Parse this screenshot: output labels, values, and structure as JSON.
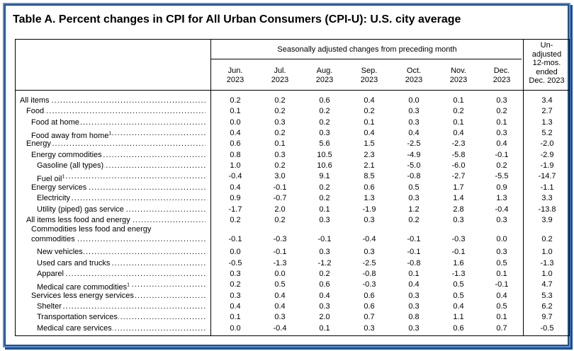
{
  "title": "Table A. Percent changes in CPI for All Urban Consumers (CPI-U): U.S. city average",
  "header": {
    "span_label": "Seasonally adjusted changes from preceding month",
    "months": [
      {
        "m": "Jun.",
        "y": "2023"
      },
      {
        "m": "Jul.",
        "y": "2023"
      },
      {
        "m": "Aug.",
        "y": "2023"
      },
      {
        "m": "Sep.",
        "y": "2023"
      },
      {
        "m": "Oct.",
        "y": "2023"
      },
      {
        "m": "Nov.",
        "y": "2023"
      },
      {
        "m": "Dec.",
        "y": "2023"
      }
    ],
    "unadjusted_lines": [
      "Un-",
      "adjusted",
      "12-mos.",
      "ended",
      "Dec. 2023"
    ]
  },
  "rows": [
    {
      "label": "All items",
      "sup": "",
      "indent": 0,
      "values": [
        "0.2",
        "0.2",
        "0.6",
        "0.4",
        "0.0",
        "0.1",
        "0.3",
        "3.4"
      ]
    },
    {
      "label": "Food",
      "sup": "",
      "indent": 1,
      "values": [
        "0.1",
        "0.2",
        "0.2",
        "0.2",
        "0.3",
        "0.2",
        "0.2",
        "2.7"
      ]
    },
    {
      "label": "Food at home",
      "sup": "",
      "indent": 2,
      "values": [
        "0.0",
        "0.3",
        "0.2",
        "0.1",
        "0.3",
        "0.1",
        "0.1",
        "1.3"
      ]
    },
    {
      "label": "Food away from home",
      "sup": "1",
      "indent": 2,
      "values": [
        "0.4",
        "0.2",
        "0.3",
        "0.4",
        "0.4",
        "0.4",
        "0.3",
        "5.2"
      ]
    },
    {
      "label": "Energy",
      "sup": "",
      "indent": 1,
      "values": [
        "0.6",
        "0.1",
        "5.6",
        "1.5",
        "-2.5",
        "-2.3",
        "0.4",
        "-2.0"
      ]
    },
    {
      "label": "Energy commodities",
      "sup": "",
      "indent": 2,
      "values": [
        "0.8",
        "0.3",
        "10.5",
        "2.3",
        "-4.9",
        "-5.8",
        "-0.1",
        "-2.9"
      ]
    },
    {
      "label": "Gasoline (all types)",
      "sup": "",
      "indent": 3,
      "values": [
        "1.0",
        "0.2",
        "10.6",
        "2.1",
        "-5.0",
        "-6.0",
        "0.2",
        "-1.9"
      ]
    },
    {
      "label": "Fuel oil",
      "sup": "1",
      "indent": 3,
      "values": [
        "-0.4",
        "3.0",
        "9.1",
        "8.5",
        "-0.8",
        "-2.7",
        "-5.5",
        "-14.7"
      ]
    },
    {
      "label": "Energy services",
      "sup": "",
      "indent": 2,
      "values": [
        "0.4",
        "-0.1",
        "0.2",
        "0.6",
        "0.5",
        "1.7",
        "0.9",
        "-1.1"
      ]
    },
    {
      "label": "Electricity",
      "sup": "",
      "indent": 3,
      "values": [
        "0.9",
        "-0.7",
        "0.2",
        "1.3",
        "0.3",
        "1.4",
        "1.3",
        "3.3"
      ]
    },
    {
      "label": "Utility (piped) gas service",
      "sup": "",
      "indent": 3,
      "values": [
        "-1.7",
        "2.0",
        "0.1",
        "-1.9",
        "1.2",
        "2.8",
        "-0.4",
        "-13.8"
      ]
    },
    {
      "label": "All items less food and energy",
      "sup": "",
      "indent": 1,
      "values": [
        "0.2",
        "0.2",
        "0.3",
        "0.3",
        "0.2",
        "0.3",
        "0.3",
        "3.9"
      ]
    },
    {
      "label": "Commodities less food and energy",
      "label2": "commodities",
      "sup": "",
      "indent": 2,
      "values": [
        "-0.1",
        "-0.3",
        "-0.1",
        "-0.4",
        "-0.1",
        "-0.3",
        "0.0",
        "0.2"
      ]
    },
    {
      "label": "New vehicles",
      "sup": "",
      "indent": 3,
      "values": [
        "0.0",
        "-0.1",
        "0.3",
        "0.3",
        "-0.1",
        "-0.1",
        "0.3",
        "1.0"
      ]
    },
    {
      "label": "Used cars and trucks",
      "sup": "",
      "indent": 3,
      "values": [
        "-0.5",
        "-1.3",
        "-1.2",
        "-2.5",
        "-0.8",
        "1.6",
        "0.5",
        "-1.3"
      ]
    },
    {
      "label": "Apparel",
      "sup": "",
      "indent": 3,
      "values": [
        "0.3",
        "0.0",
        "0.2",
        "-0.8",
        "0.1",
        "-1.3",
        "0.1",
        "1.0"
      ]
    },
    {
      "label": "Medical care commodities",
      "sup": "1",
      "indent": 3,
      "values": [
        "0.2",
        "0.5",
        "0.6",
        "-0.3",
        "0.4",
        "0.5",
        "-0.1",
        "4.7"
      ]
    },
    {
      "label": "Services less energy services",
      "sup": "",
      "indent": 2,
      "values": [
        "0.3",
        "0.4",
        "0.4",
        "0.6",
        "0.3",
        "0.5",
        "0.4",
        "5.3"
      ]
    },
    {
      "label": "Shelter",
      "sup": "",
      "indent": 3,
      "values": [
        "0.4",
        "0.4",
        "0.3",
        "0.6",
        "0.3",
        "0.4",
        "0.5",
        "6.2"
      ]
    },
    {
      "label": "Transportation services",
      "sup": "",
      "indent": 3,
      "values": [
        "0.1",
        "0.3",
        "2.0",
        "0.7",
        "0.8",
        "1.1",
        "0.1",
        "9.7"
      ]
    },
    {
      "label": "Medical care services",
      "sup": "",
      "indent": 3,
      "values": [
        "0.0",
        "-0.4",
        "0.1",
        "0.3",
        "0.3",
        "0.6",
        "0.7",
        "-0.5"
      ]
    }
  ]
}
